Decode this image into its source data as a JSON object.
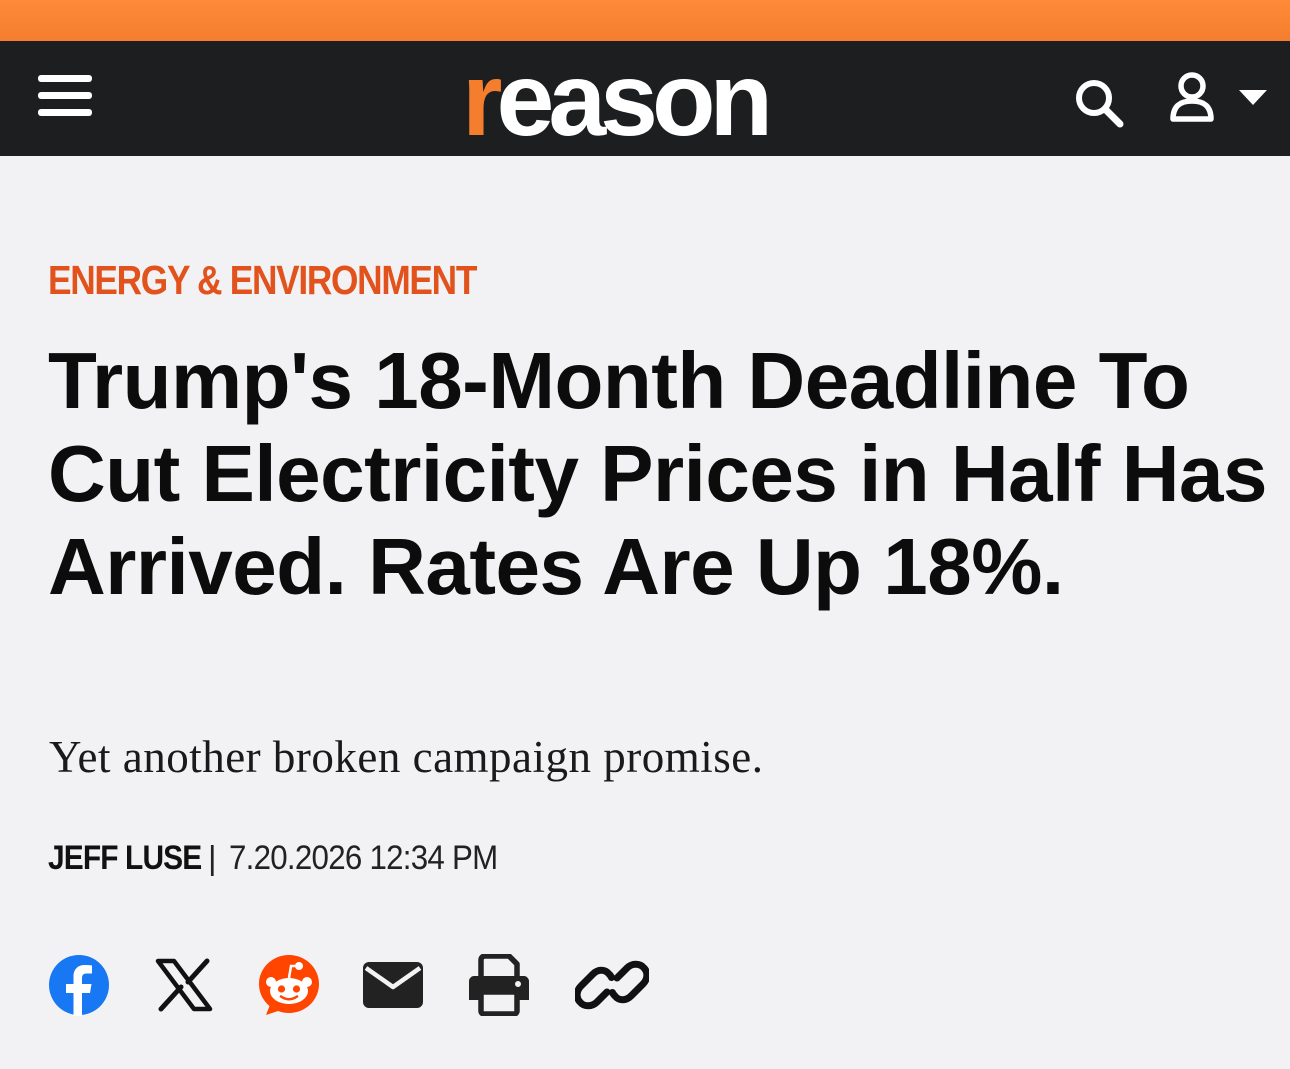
{
  "header": {
    "logo_first_letter": "r",
    "logo_rest": "eason",
    "brand_color": "#f47e2e",
    "nav_background": "#1c1e1f",
    "menu_icon": "hamburger-icon",
    "search_icon": "search-icon",
    "account_icon": "user-icon",
    "account_dropdown_icon": "caret-down-icon"
  },
  "article": {
    "category": "ENERGY & ENVIRONMENT",
    "category_color": "#e2521c",
    "headline": "Trump's 18-Month Deadline To Cut Electricity Prices in Half Has Arrived. Rates Are Up 18%.",
    "subhead": "Yet another broken campaign promise.",
    "author": "JEFF LUSE",
    "separator": "|",
    "datetime": "7.20.2026 12:34 PM"
  },
  "share": {
    "buttons": [
      {
        "name": "facebook",
        "icon": "facebook-icon",
        "color": "#1877f2"
      },
      {
        "name": "x",
        "icon": "x-icon",
        "color": "#111111"
      },
      {
        "name": "reddit",
        "icon": "reddit-icon",
        "color": "#ff4500"
      },
      {
        "name": "email",
        "icon": "email-icon",
        "color": "#222222"
      },
      {
        "name": "print",
        "icon": "print-icon",
        "color": "#222222"
      },
      {
        "name": "copy-link",
        "icon": "link-icon",
        "color": "#111111"
      }
    ]
  }
}
